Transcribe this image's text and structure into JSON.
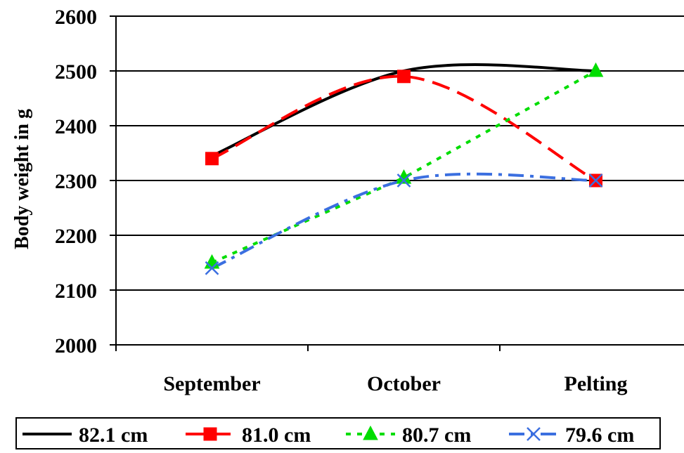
{
  "chart_data": {
    "type": "line",
    "title": "",
    "xlabel": "",
    "ylabel": "Body weight in g",
    "categories": [
      "September",
      "October",
      "Pelting"
    ],
    "ylim": [
      2000,
      2600
    ],
    "yticks": [
      2000,
      2100,
      2200,
      2300,
      2400,
      2500,
      2600
    ],
    "grid": true,
    "legend_position": "bottom",
    "series": [
      {
        "name": "82.1 cm",
        "values": [
          2345,
          2500,
          2500
        ],
        "color": "#000000",
        "dash": "solid",
        "marker": "none",
        "smooth": true
      },
      {
        "name": "81.0 cm",
        "values": [
          2340,
          2490,
          2300
        ],
        "color": "#ff0000",
        "dash": "long-dash",
        "marker": "square",
        "smooth": true
      },
      {
        "name": "80.7 cm",
        "values": [
          2150,
          2305,
          2500
        ],
        "color": "#00dd00",
        "dash": "dot",
        "marker": "triangle",
        "smooth": false
      },
      {
        "name": "79.6 cm",
        "values": [
          2140,
          2300,
          2300
        ],
        "color": "#3b6fe0",
        "dash": "dash-dot",
        "marker": "x",
        "smooth": true
      }
    ]
  }
}
